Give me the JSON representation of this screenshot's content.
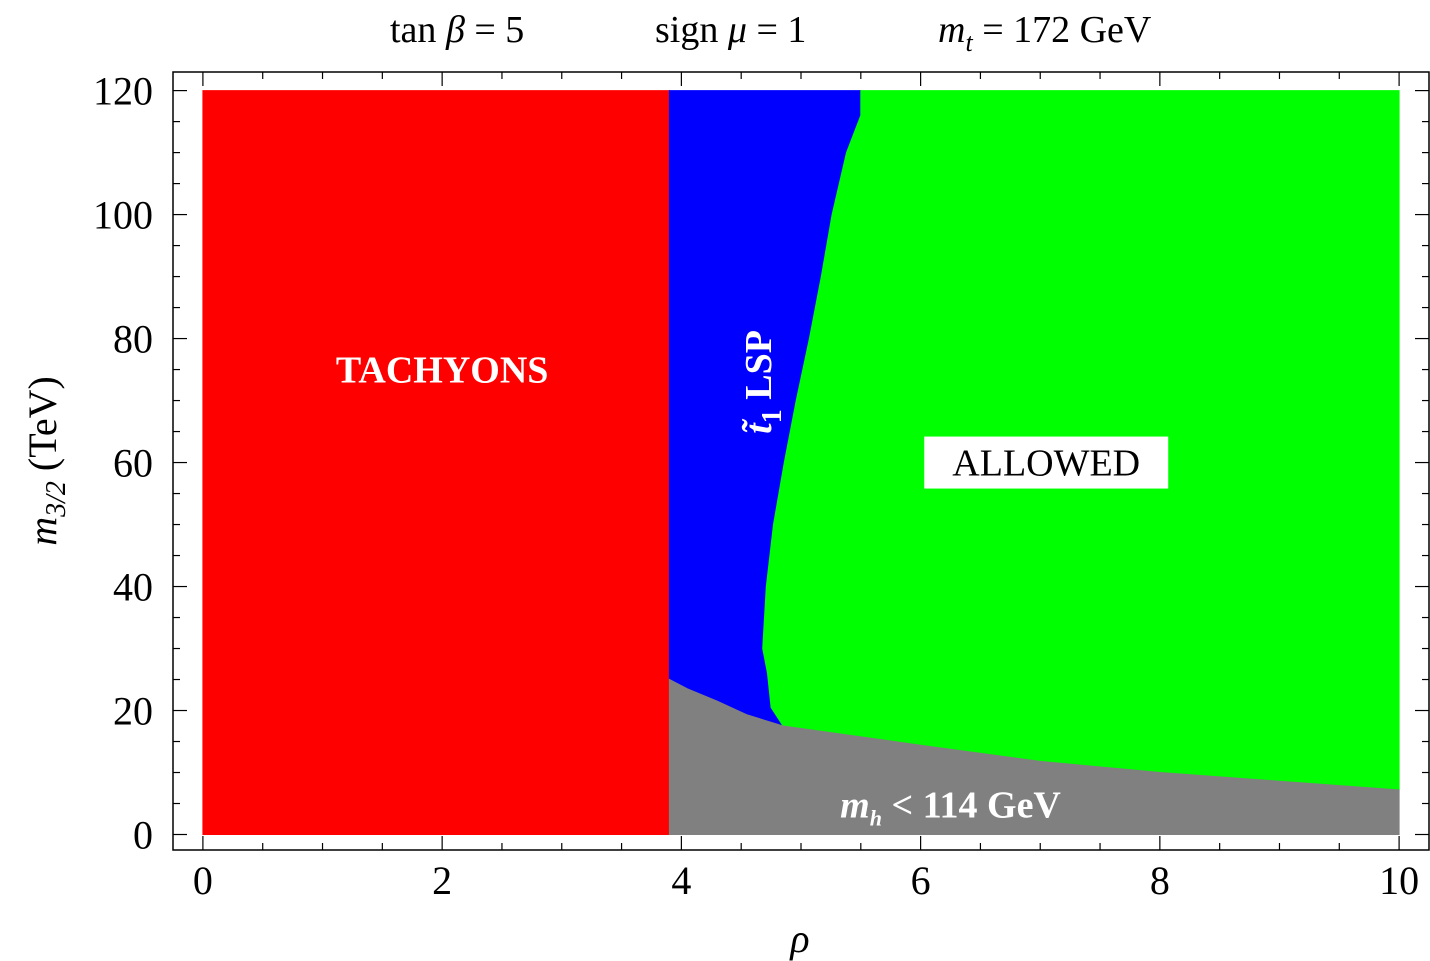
{
  "chart_data": {
    "type": "area",
    "title_parts": {
      "tanb": {
        "pre": "tan ",
        "sym": "β",
        "post": " = 5"
      },
      "signmu": {
        "pre": "sign ",
        "sym": "μ",
        "post": " = 1"
      },
      "mt": {
        "sym": "m",
        "sub": "t",
        "post": " = 172 GeV"
      }
    },
    "xlabel": "ρ",
    "ylabel": {
      "sym": "m",
      "sub": "3/2",
      "post": "  (TeV)"
    },
    "xlim": [
      -0.25,
      10.25
    ],
    "ylim": [
      -2.5,
      123
    ],
    "xticks": [
      0,
      2,
      4,
      6,
      8,
      10
    ],
    "yticks": [
      0,
      20,
      40,
      60,
      80,
      100,
      120
    ],
    "xtick_labels": [
      "0",
      "2",
      "4",
      "6",
      "8",
      "10"
    ],
    "ytick_labels": [
      "0",
      "20",
      "40",
      "60",
      "80",
      "100",
      "120"
    ],
    "regions": [
      {
        "name": "TACHYONS",
        "color": "#ff0000",
        "polygon": [
          [
            0,
            0
          ],
          [
            3.9,
            0
          ],
          [
            3.9,
            120
          ],
          [
            0,
            120
          ]
        ]
      },
      {
        "name": "stop LSP",
        "color": "#0000ff",
        "polygon": [
          [
            3.9,
            25
          ],
          [
            4.05,
            23.5
          ],
          [
            4.3,
            21.5
          ],
          [
            4.55,
            19.3
          ],
          [
            4.85,
            17.5
          ],
          [
            4.75,
            20.5
          ],
          [
            4.72,
            26
          ],
          [
            4.68,
            30
          ],
          [
            4.71,
            40
          ],
          [
            4.77,
            50
          ],
          [
            4.86,
            60
          ],
          [
            4.96,
            70
          ],
          [
            5.07,
            80
          ],
          [
            5.17,
            90
          ],
          [
            5.26,
            100
          ],
          [
            5.38,
            110
          ],
          [
            5.5,
            116
          ],
          [
            5.5,
            120
          ],
          [
            3.9,
            120
          ]
        ]
      },
      {
        "name": "ALLOWED",
        "color": "#00ff00",
        "polygon": [
          [
            4.85,
            17.5
          ],
          [
            5.3,
            16.3
          ],
          [
            6,
            14.4
          ],
          [
            7,
            11.8
          ],
          [
            8,
            10
          ],
          [
            9,
            8.6
          ],
          [
            10,
            7.2
          ],
          [
            10,
            120
          ],
          [
            5.5,
            120
          ],
          [
            5.5,
            116
          ],
          [
            5.38,
            110
          ],
          [
            5.26,
            100
          ],
          [
            5.17,
            90
          ],
          [
            5.07,
            80
          ],
          [
            4.96,
            70
          ],
          [
            4.86,
            60
          ],
          [
            4.77,
            50
          ],
          [
            4.71,
            40
          ],
          [
            4.68,
            30
          ],
          [
            4.72,
            26
          ],
          [
            4.75,
            20.5
          ]
        ]
      },
      {
        "name": "mh < 114 GeV",
        "color": "#808080",
        "polygon": [
          [
            3.9,
            0
          ],
          [
            10,
            0
          ],
          [
            10,
            7.2
          ],
          [
            9,
            8.6
          ],
          [
            8,
            10
          ],
          [
            7,
            11.8
          ],
          [
            6,
            14.4
          ],
          [
            5.3,
            16.3
          ],
          [
            4.85,
            17.5
          ],
          [
            4.55,
            19.3
          ],
          [
            4.3,
            21.5
          ],
          [
            4.05,
            23.5
          ],
          [
            3.9,
            25
          ]
        ]
      }
    ],
    "annotations": {
      "tachyons": {
        "text": "TACHYONS",
        "x": 2.0,
        "y": 75
      },
      "allowed": {
        "text": "ALLOWED",
        "x": 7.05,
        "y": 60
      },
      "stop_lsp": {
        "sym": "t̃",
        "sub": "1",
        "post": " LSP",
        "x": 4.65,
        "y": 73
      },
      "higgs": {
        "sym": "m",
        "sub": "h",
        "post": "  < 114 GeV",
        "x": 6.25,
        "y": 4.5
      }
    },
    "grid": false,
    "colors": {
      "tachyons": "#ff0000",
      "stop_lsp": "#0000ff",
      "allowed": "#00ff00",
      "higgs_excluded": "#808080"
    }
  }
}
